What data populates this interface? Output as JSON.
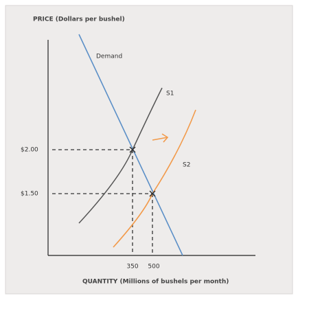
{
  "figure": {
    "y_axis_label": "PRICE (Dollars per bushel)",
    "x_axis_label": "QUANTITY (Millions of bushels per month)",
    "curves": {
      "demand": "Demand",
      "supply_1": "S1",
      "supply_2": "S2"
    },
    "price_labels": [
      "$2.00",
      "$1.50"
    ],
    "quantity_labels": [
      "350",
      "500"
    ]
  }
}
